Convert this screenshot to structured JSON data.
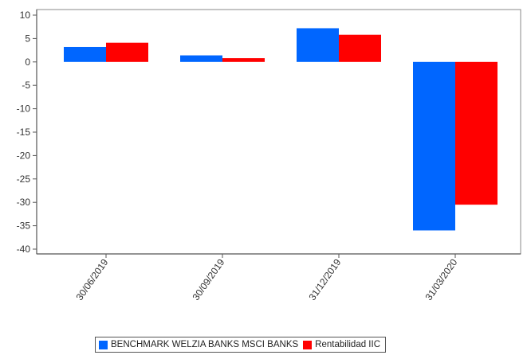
{
  "chart_data": {
    "type": "bar",
    "categories": [
      "30/06/2019",
      "30/09/2019",
      "31/12/2019",
      "31/03/2020"
    ],
    "series": [
      {
        "name": "BENCHMARK WELZIA BANKS MSCI BANKS",
        "color": "#0066ff",
        "values": [
          3.2,
          1.4,
          7.2,
          -36.0
        ]
      },
      {
        "name": "Rentabilidad IIC",
        "color": "#ff0000",
        "values": [
          4.1,
          0.8,
          5.8,
          -30.5
        ]
      }
    ],
    "ylim": [
      -40,
      10
    ],
    "yticks": [
      10,
      5,
      0,
      -5,
      -10,
      -15,
      -20,
      -25,
      -30,
      -35,
      -40
    ],
    "legend_position": "bottom",
    "grid": false
  }
}
